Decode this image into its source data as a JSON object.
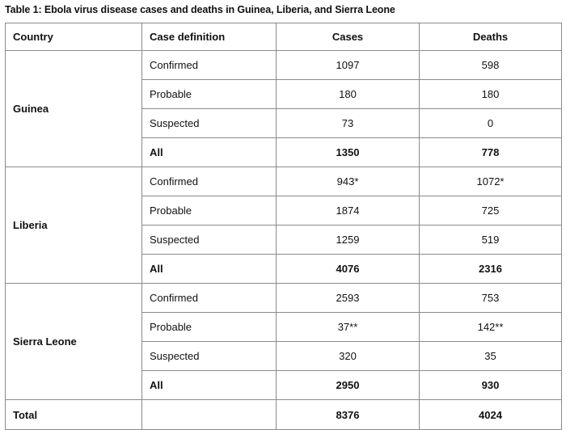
{
  "caption": "Table 1: Ebola virus disease cases and deaths in Guinea, Liberia, and Sierra Leone",
  "headers": {
    "country": "Country",
    "case_definition": "Case definition",
    "cases": "Cases",
    "deaths": "Deaths"
  },
  "groups": [
    {
      "country": "Guinea",
      "rows": [
        {
          "definition": "Confirmed",
          "cases": "1097",
          "deaths": "598"
        },
        {
          "definition": "Probable",
          "cases": "180",
          "deaths": "180"
        },
        {
          "definition": "Suspected",
          "cases": "73",
          "deaths": "0"
        },
        {
          "definition": "All",
          "cases": "1350",
          "deaths": "778"
        }
      ]
    },
    {
      "country": "Liberia",
      "rows": [
        {
          "definition": "Confirmed",
          "cases": "943*",
          "deaths": "1072*"
        },
        {
          "definition": "Probable",
          "cases": "1874",
          "deaths": "725"
        },
        {
          "definition": "Suspected",
          "cases": "1259",
          "deaths": "519"
        },
        {
          "definition": "All",
          "cases": "4076",
          "deaths": "2316"
        }
      ]
    },
    {
      "country": "Sierra Leone",
      "rows": [
        {
          "definition": "Confirmed",
          "cases": "2593",
          "deaths": "753"
        },
        {
          "definition": "Probable",
          "cases": "37**",
          "deaths": "142**"
        },
        {
          "definition": "Suspected",
          "cases": "320",
          "deaths": "35"
        },
        {
          "definition": "All",
          "cases": "2950",
          "deaths": "930"
        }
      ]
    }
  ],
  "total": {
    "label": "Total",
    "definition": "",
    "cases": "8376",
    "deaths": "4024"
  }
}
